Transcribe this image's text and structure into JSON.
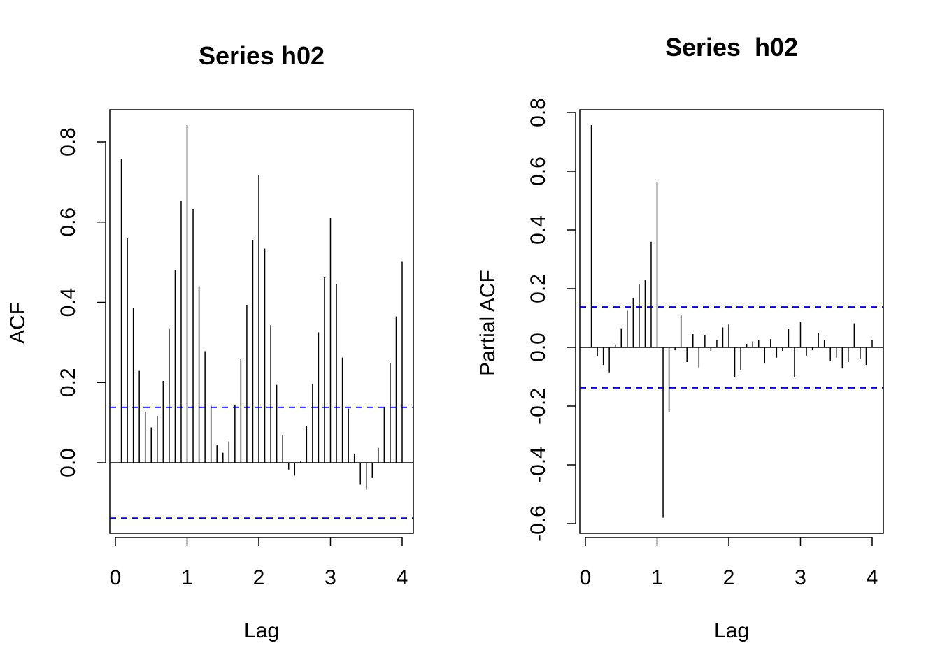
{
  "chart_data": [
    {
      "type": "bar",
      "title": "Series h02",
      "xlabel": "Lag",
      "ylabel": "ACF",
      "xlim": [
        0,
        4
      ],
      "ylim": [
        -0.18,
        0.88
      ],
      "xticks": [
        "0",
        "1",
        "2",
        "3",
        "4"
      ],
      "yticks": [
        "0.0",
        "0.2",
        "0.4",
        "0.6",
        "0.8"
      ],
      "confidence_band": 0.138,
      "band_color": "#0000ff",
      "x": [
        0.0833,
        0.1667,
        0.25,
        0.3333,
        0.4167,
        0.5,
        0.5833,
        0.6667,
        0.75,
        0.8333,
        0.9167,
        1.0,
        1.0833,
        1.1667,
        1.25,
        1.3333,
        1.4167,
        1.5,
        1.5833,
        1.6667,
        1.75,
        1.8333,
        1.9167,
        2.0,
        2.0833,
        2.1667,
        2.25,
        2.3333,
        2.4167,
        2.5,
        2.5833,
        2.6667,
        2.75,
        2.8333,
        2.9167,
        3.0,
        3.0833,
        3.1667,
        3.25,
        3.3333,
        3.4167,
        3.5,
        3.5833,
        3.6667,
        3.75,
        3.8333,
        3.9167,
        4.0
      ],
      "values": [
        0.757,
        0.56,
        0.387,
        0.229,
        0.127,
        0.088,
        0.117,
        0.204,
        0.335,
        0.48,
        0.652,
        0.842,
        0.633,
        0.44,
        0.278,
        0.142,
        0.045,
        0.025,
        0.053,
        0.145,
        0.26,
        0.393,
        0.556,
        0.717,
        0.534,
        0.343,
        0.194,
        0.07,
        -0.017,
        -0.032,
        0.003,
        0.092,
        0.196,
        0.325,
        0.462,
        0.61,
        0.445,
        0.262,
        0.135,
        0.023,
        -0.055,
        -0.067,
        -0.038,
        0.037,
        0.137,
        0.249,
        0.365,
        0.501
      ]
    },
    {
      "type": "bar",
      "title": "Series  h02",
      "xlabel": "Lag",
      "ylabel": "Partial ACF",
      "xlim": [
        0,
        4
      ],
      "ylim": [
        -0.6,
        0.8
      ],
      "xticks": [
        "0",
        "1",
        "2",
        "3",
        "4"
      ],
      "yticks": [
        "-0.6",
        "-0.4",
        "-0.2",
        "0.0",
        "0.2",
        "0.4",
        "0.6",
        "0.8"
      ],
      "confidence_band": 0.138,
      "band_color": "#0000ff",
      "x": [
        0.0833,
        0.1667,
        0.25,
        0.3333,
        0.4167,
        0.5,
        0.5833,
        0.6667,
        0.75,
        0.8333,
        0.9167,
        1.0,
        1.0833,
        1.1667,
        1.25,
        1.3333,
        1.4167,
        1.5,
        1.5833,
        1.6667,
        1.75,
        1.8333,
        1.9167,
        2.0,
        2.0833,
        2.1667,
        2.25,
        2.3333,
        2.4167,
        2.5,
        2.5833,
        2.6667,
        2.75,
        2.8333,
        2.9167,
        3.0,
        3.0833,
        3.1667,
        3.25,
        3.3333,
        3.4167,
        3.5,
        3.5833,
        3.6667,
        3.75,
        3.8333,
        3.9167,
        4.0
      ],
      "values": [
        0.757,
        -0.03,
        -0.06,
        -0.085,
        0.01,
        0.065,
        0.125,
        0.168,
        0.215,
        0.23,
        0.36,
        0.565,
        -0.58,
        -0.22,
        -0.01,
        0.112,
        -0.05,
        0.045,
        -0.068,
        0.042,
        -0.012,
        0.025,
        0.068,
        0.078,
        -0.1,
        -0.078,
        0.012,
        0.02,
        0.025,
        -0.055,
        0.028,
        -0.035,
        -0.012,
        0.062,
        -0.102,
        0.088,
        -0.028,
        -0.01,
        0.05,
        0.025,
        -0.045,
        -0.035,
        -0.072,
        -0.05,
        0.082,
        -0.04,
        -0.06,
        0.025
      ]
    }
  ]
}
